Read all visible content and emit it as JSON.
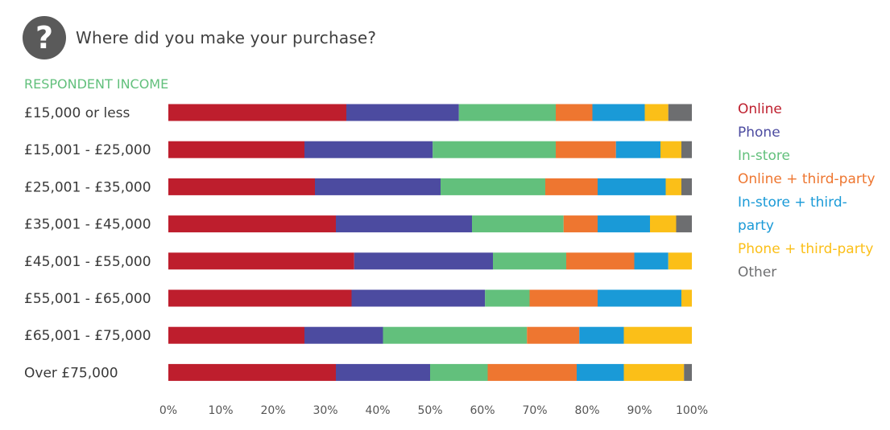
{
  "header": {
    "icon": "question-mark-icon",
    "icon_glyph": "?",
    "title": "Where did you make your purchase?"
  },
  "subtitle": "RESPONDENT INCOME",
  "chart_data": {
    "type": "bar",
    "orientation": "horizontal",
    "stacked": true,
    "title": "Where did you make your purchase?",
    "subtitle": "RESPONDENT INCOME",
    "categories": [
      "£15,000 or less",
      "£15,001 - £25,000",
      "£25,001 - £35,000",
      "£35,001 - £45,000",
      "£45,001 - £55,000",
      "£55,001 - £65,000",
      "£65,001 - £75,000",
      "Over £75,000"
    ],
    "series": [
      {
        "name": "Online",
        "color": "#be1e2d",
        "values": [
          34,
          26,
          28,
          32,
          35.5,
          35,
          26,
          32
        ]
      },
      {
        "name": "Phone",
        "color": "#4c4ba0",
        "values": [
          21.5,
          24.5,
          24,
          26,
          26.5,
          25.5,
          15,
          18
        ]
      },
      {
        "name": "In-store",
        "color": "#62c07c",
        "values": [
          18.5,
          23.5,
          20,
          17.5,
          14,
          8.5,
          27.5,
          11
        ]
      },
      {
        "name": "Online + third-party",
        "color": "#ee7630",
        "values": [
          7,
          11.5,
          10,
          6.5,
          13,
          13,
          10,
          17
        ]
      },
      {
        "name": "In-store + third-party",
        "color": "#1a9ad7",
        "values": [
          10,
          8.5,
          13,
          10,
          6.5,
          16,
          8.5,
          9
        ]
      },
      {
        "name": "Phone + third-party",
        "color": "#fbbf18",
        "values": [
          4.5,
          4,
          3,
          5,
          4.5,
          2,
          13,
          11.5
        ]
      },
      {
        "name": "Other",
        "color": "#6d6e70",
        "values": [
          4.5,
          2,
          2,
          3,
          0,
          0,
          0,
          1.5
        ]
      }
    ],
    "xlim": [
      0,
      100
    ],
    "xticks": [
      "0%",
      "10%",
      "20%",
      "30%",
      "40%",
      "50%",
      "60%",
      "70%",
      "80%",
      "90%",
      "100%"
    ],
    "grid": false,
    "legend_position": "right"
  },
  "legend": [
    {
      "label": "Online",
      "color": "#be1e2d"
    },
    {
      "label": "Phone",
      "color": "#4c4ba0"
    },
    {
      "label": "In-store",
      "color": "#62c07c"
    },
    {
      "label": "Online + third-party",
      "color": "#ee7630"
    },
    {
      "label": "In-store + third-",
      "color": "#1a9ad7"
    },
    {
      "label": "party",
      "color": "#1a9ad7"
    },
    {
      "label": "Phone + third-party",
      "color": "#fbbf18"
    },
    {
      "label": "Other",
      "color": "#6d6e70"
    }
  ]
}
